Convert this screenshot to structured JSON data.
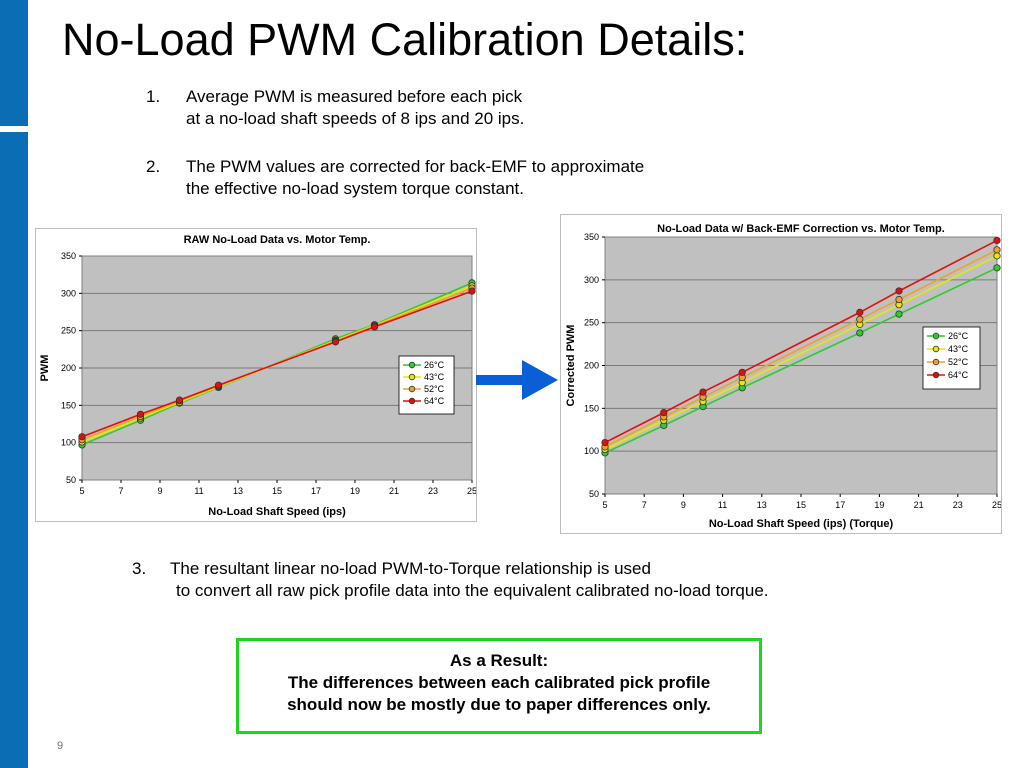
{
  "slide": {
    "title": "No-Load PWM Calibration Details:",
    "page_number": "9"
  },
  "items": [
    {
      "num": "1.",
      "lines": [
        "Average PWM is measured before each pick",
        "at a no-load shaft speeds of 8 ips and 20 ips."
      ]
    },
    {
      "num": "2.",
      "lines": [
        "The PWM values are corrected for back-EMF to approximate",
        "the effective no-load system torque constant."
      ]
    },
    {
      "num": "3.",
      "lines": [
        "The resultant linear no-load PWM-to-Torque relationship is used",
        "to convert all raw pick profile data into the equivalent calibrated no-load torque."
      ]
    }
  ],
  "result": {
    "heading": "As a Result:",
    "line1": "The differences between each calibrated pick profile",
    "line2": "should now be mostly due to paper differences only."
  },
  "colors": {
    "blue_bar": "#0b6db4",
    "plot_bg": "#c0c0c0",
    "arrow": "#0b5fd6",
    "result_border": "#1ed61e",
    "series": [
      "#2ecc2e",
      "#e8e800",
      "#f0a030",
      "#e01010"
    ]
  },
  "chart_data": [
    {
      "type": "line",
      "title": "RAW No-Load Data vs. Motor Temp.",
      "xlabel": "No-Load Shaft Speed (ips)",
      "ylabel": "PWM",
      "xlim": [
        5,
        25
      ],
      "ylim": [
        50,
        350
      ],
      "xticks": [
        5,
        7,
        9,
        11,
        13,
        15,
        17,
        19,
        21,
        23,
        25
      ],
      "yticks": [
        50,
        100,
        150,
        200,
        250,
        300,
        350
      ],
      "grid": true,
      "legend": "right",
      "x": [
        5,
        8,
        10,
        12,
        18,
        20,
        25
      ],
      "series": [
        {
          "name": "26°C",
          "color": "#2ecc2e",
          "values": [
            97,
            130,
            153,
            174,
            239,
            258,
            314
          ]
        },
        {
          "name": "43°C",
          "color": "#e8e800",
          "values": [
            101,
            133,
            154,
            175,
            237,
            257,
            310
          ]
        },
        {
          "name": "52°C",
          "color": "#f0a030",
          "values": [
            104,
            135,
            156,
            176,
            236,
            256,
            307
          ]
        },
        {
          "name": "64°C",
          "color": "#e01010",
          "values": [
            108,
            138,
            157,
            177,
            235,
            255,
            303
          ]
        }
      ]
    },
    {
      "type": "line",
      "title": "No-Load Data w/ Back-EMF Correction vs. Motor Temp.",
      "xlabel": "No-Load Shaft Speed (ips) (Torque)",
      "ylabel": "Corrected PWM",
      "xlim": [
        5,
        25
      ],
      "ylim": [
        50,
        350
      ],
      "xticks": [
        5,
        7,
        9,
        11,
        13,
        15,
        17,
        19,
        21,
        23,
        25
      ],
      "yticks": [
        50,
        100,
        150,
        200,
        250,
        300,
        350
      ],
      "grid": true,
      "legend": "right",
      "x": [
        5,
        8,
        10,
        12,
        18,
        20,
        25
      ],
      "series": [
        {
          "name": "26°C",
          "color": "#2ecc2e",
          "values": [
            98,
            130,
            152,
            174,
            238,
            260,
            314
          ]
        },
        {
          "name": "43°C",
          "color": "#e8e800",
          "values": [
            102,
            136,
            158,
            180,
            248,
            271,
            328
          ]
        },
        {
          "name": "52°C",
          "color": "#f0a030",
          "values": [
            105,
            140,
            163,
            186,
            254,
            277,
            335
          ]
        },
        {
          "name": "64°C",
          "color": "#e01010",
          "values": [
            110,
            145,
            169,
            192,
            262,
            287,
            346
          ]
        }
      ]
    }
  ]
}
